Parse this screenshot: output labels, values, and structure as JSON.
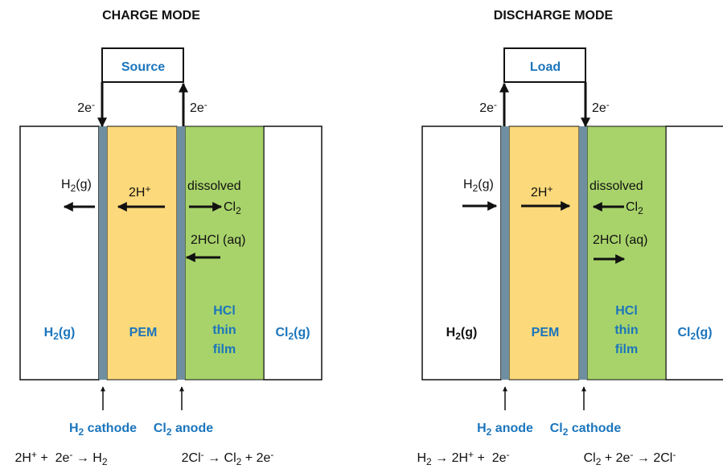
{
  "panels": [
    {
      "title": "CHARGE MODE",
      "box": "Source",
      "e_left": [
        "2e",
        "-"
      ],
      "e_right": [
        "2e",
        "-"
      ],
      "gas": [
        "H",
        "2",
        "(g)"
      ],
      "proton": [
        "2H",
        "+"
      ],
      "dissolved": "dissolved",
      "cl2": [
        "Cl",
        "2"
      ],
      "hcl": "2HCl (aq)",
      "left_region": [
        "H",
        "2",
        "(g)"
      ],
      "pem": "PEM",
      "film": [
        "HCl",
        "thin",
        "film"
      ],
      "right_region": [
        "Cl",
        "2",
        "(g)"
      ],
      "left_electrode": [
        "H",
        "2",
        " cathode"
      ],
      "right_electrode": [
        "Cl",
        "2",
        " anode"
      ],
      "left_reaction": [
        "2H",
        "+",
        " +  2e",
        "-",
        " → H",
        "2"
      ],
      "right_reaction": [
        "2Cl",
        "-",
        " → Cl",
        "2",
        " + 2e",
        "-"
      ]
    },
    {
      "title": "DISCHARGE MODE",
      "box": "Load",
      "e_left": [
        "2e",
        "-"
      ],
      "e_right": [
        "2e",
        "-"
      ],
      "gas": [
        "H",
        "2",
        "(g)"
      ],
      "proton": [
        "2H",
        "+"
      ],
      "dissolved": "dissolved",
      "cl2": [
        "Cl",
        "2"
      ],
      "hcl": "2HCl (aq)",
      "left_region": [
        "H",
        "2",
        "(g)"
      ],
      "pem": "PEM",
      "film": [
        "HCl",
        "thin",
        "film"
      ],
      "right_region": [
        "Cl",
        "2",
        "(g)"
      ],
      "left_electrode": [
        "H",
        "2",
        " anode"
      ],
      "right_electrode": [
        "Cl",
        "2",
        " cathode"
      ],
      "left_reaction": [
        "H",
        "2",
        " → 2H",
        "+",
        " +  2e",
        "-"
      ],
      "right_reaction": [
        "Cl",
        "2",
        " + 2e",
        "-",
        " → 2Cl",
        "-"
      ]
    }
  ]
}
